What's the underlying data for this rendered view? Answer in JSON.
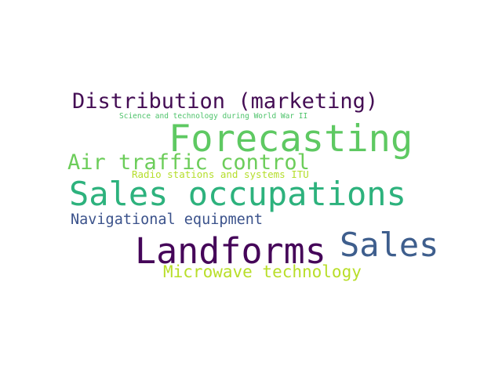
{
  "words": [
    {
      "text": "Distribution (marketing)",
      "color": "#440d54"
    },
    {
      "text": "Science and technology during World War II",
      "color": "#4ec36b"
    },
    {
      "text": "Forecasting",
      "color": "#5ec962"
    },
    {
      "text": "Air traffic control",
      "color": "#6ccd5a"
    },
    {
      "text": "Radio stations and systems ITU",
      "color": "#b5de2b"
    },
    {
      "text": "Sales occupations",
      "color": "#2db27d"
    },
    {
      "text": "Navigational equipment",
      "color": "#3b528b"
    },
    {
      "text": "Sales",
      "color": "#3e5e8d"
    },
    {
      "text": "Landforms",
      "color": "#450559"
    },
    {
      "text": "Microwave technology",
      "color": "#b8de29"
    }
  ]
}
